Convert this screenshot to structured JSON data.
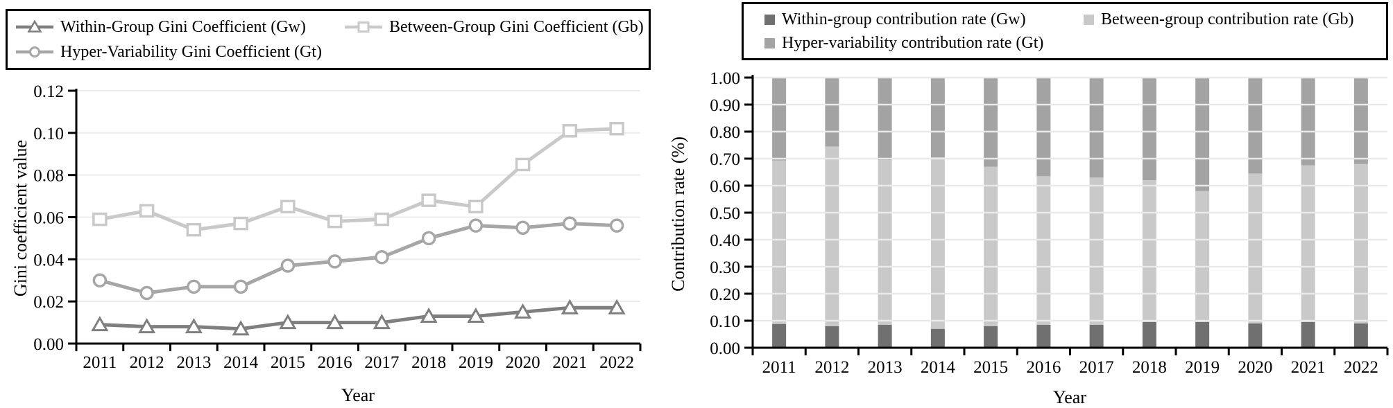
{
  "chart_data": [
    {
      "type": "line",
      "title": "",
      "xlabel": "Year",
      "ylabel": "Gini coefficient value",
      "x": [
        "2011",
        "2012",
        "2013",
        "2014",
        "2015",
        "2016",
        "2017",
        "2018",
        "2019",
        "2020",
        "2021",
        "2022"
      ],
      "ylim": [
        0,
        0.12
      ],
      "ytick_step": 0.02,
      "grid": true,
      "legend_position": "top-boxed",
      "gridline_color": "#ececec",
      "axis_color": "#000000",
      "series": [
        {
          "name": "Within-Group Gini Coefficient (Gw)",
          "marker": "triangle",
          "color": "#7f7f7f",
          "values": [
            0.009,
            0.008,
            0.008,
            0.007,
            0.01,
            0.01,
            0.01,
            0.013,
            0.013,
            0.015,
            0.017,
            0.017
          ]
        },
        {
          "name": "Between-Group Gini Coefficient (Gb)",
          "marker": "square",
          "color": "#c9c9c9",
          "values": [
            0.059,
            0.063,
            0.054,
            0.057,
            0.065,
            0.058,
            0.059,
            0.068,
            0.065,
            0.085,
            0.101,
            0.102
          ]
        },
        {
          "name": "Hyper-Variability Gini Coefficient (Gt)",
          "marker": "circle",
          "color": "#a6a6a6",
          "values": [
            0.03,
            0.024,
            0.027,
            0.027,
            0.037,
            0.039,
            0.041,
            0.05,
            0.056,
            0.055,
            0.057,
            0.056
          ]
        }
      ]
    },
    {
      "type": "bar",
      "stacked": true,
      "title": "",
      "xlabel": "Year",
      "ylabel": "Contribution rate (%)",
      "x": [
        "2011",
        "2012",
        "2013",
        "2014",
        "2015",
        "2016",
        "2017",
        "2018",
        "2019",
        "2020",
        "2021",
        "2022"
      ],
      "ylim": [
        0,
        1.0
      ],
      "ytick_step": 0.1,
      "grid": true,
      "legend_position": "top-boxed",
      "gridline_color": "#e9e9e9",
      "axis_color": "#000000",
      "series": [
        {
          "name": "Within-group contribution rate (Gw)",
          "color": "#707070",
          "values": [
            0.088,
            0.08,
            0.085,
            0.07,
            0.08,
            0.085,
            0.085,
            0.095,
            0.095,
            0.09,
            0.095,
            0.09
          ]
        },
        {
          "name": "Between-group contribution rate (Gb)",
          "color": "#c9c9c9",
          "values": [
            0.605,
            0.665,
            0.61,
            0.635,
            0.59,
            0.55,
            0.545,
            0.525,
            0.485,
            0.555,
            0.58,
            0.59
          ]
        },
        {
          "name": "Hyper-variability contribution rate (Gt)",
          "color": "#a3a3a3",
          "values": [
            0.307,
            0.255,
            0.305,
            0.295,
            0.33,
            0.365,
            0.37,
            0.38,
            0.42,
            0.355,
            0.325,
            0.32
          ]
        }
      ]
    }
  ]
}
